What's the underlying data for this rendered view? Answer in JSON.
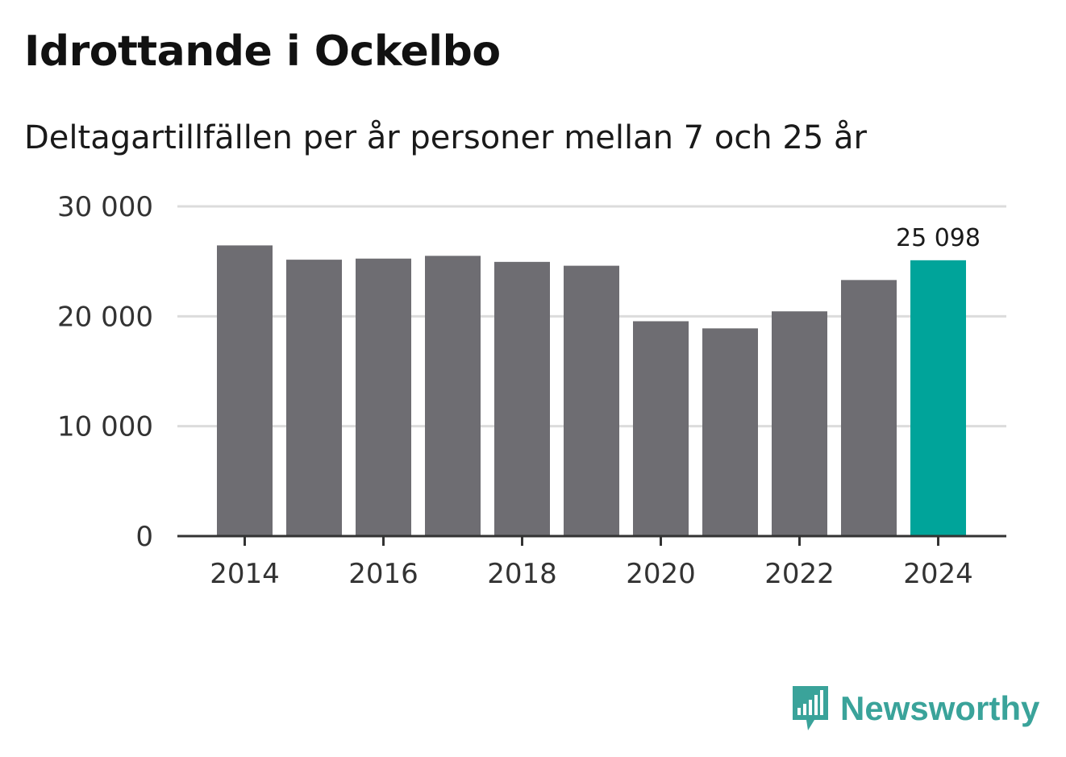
{
  "header": {
    "title": "Idrottande i Ockelbo",
    "subtitle": "Deltagartillfällen per år personer mellan 7 och 25 år"
  },
  "brand": {
    "name": "Newsworthy",
    "icon": "newsworthy-logo-icon",
    "color": "#3aa39a"
  },
  "colors": {
    "bar": "#6e6d72",
    "highlight": "#00a49a",
    "grid": "#dcdcdc",
    "axis": "#333333"
  },
  "chart_data": {
    "type": "bar",
    "title": "Idrottande i Ockelbo",
    "subtitle": "Deltagartillfällen per år personer mellan 7 och 25 år",
    "categories": [
      "2014",
      "2015",
      "2016",
      "2017",
      "2018",
      "2019",
      "2020",
      "2021",
      "2022",
      "2023",
      "2024"
    ],
    "values": [
      26450,
      25150,
      25250,
      25500,
      24950,
      24600,
      19550,
      18900,
      20450,
      23300,
      25098
    ],
    "highlight_index": 10,
    "data_labels": [
      {
        "index": 10,
        "text": "25 098"
      }
    ],
    "xticks": [
      "2014",
      "2016",
      "2018",
      "2020",
      "2022",
      "2024"
    ],
    "yticks": [
      {
        "value": 0,
        "label": "0"
      },
      {
        "value": 10000,
        "label": "10 000"
      },
      {
        "value": 20000,
        "label": "20 000"
      },
      {
        "value": 30000,
        "label": "30 000"
      }
    ],
    "ylim": [
      0,
      30000
    ],
    "xlabel": "",
    "ylabel": "",
    "grid": true
  }
}
